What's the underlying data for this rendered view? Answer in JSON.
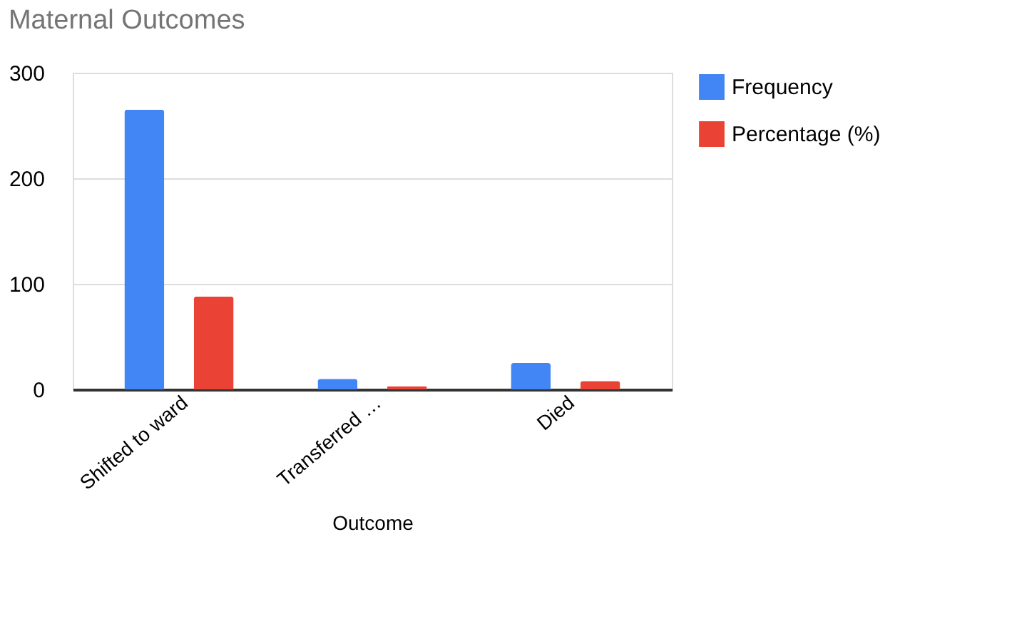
{
  "chart_data": {
    "type": "bar",
    "title": "Maternal Outcomes",
    "xlabel": "Outcome",
    "categories": [
      "Shifted to ward",
      "Transferred …",
      "Died"
    ],
    "series": [
      {
        "name": "Frequency",
        "color": "#4285f4",
        "values": [
          265,
          10,
          25
        ]
      },
      {
        "name": "Percentage (%)",
        "color": "#ea4335",
        "values": [
          88,
          3,
          8
        ]
      }
    ],
    "ylim": [
      0,
      300
    ],
    "yticks": [
      0,
      100,
      200,
      300
    ],
    "grid": "y",
    "legend": "top right"
  }
}
